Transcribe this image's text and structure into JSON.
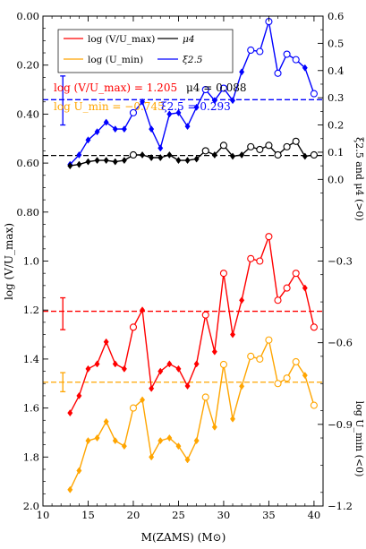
{
  "chart_data": {
    "type": "line",
    "xlabel": "M(ZAMS) (M⊙)",
    "ylabel_left": "log (V/U_max)",
    "ylabel_right_top": "ξ2.5 and μ4 (>0)",
    "ylabel_right_bottom": "log U_min (<0)",
    "xlim": [
      10,
      41
    ],
    "ylim_left_inverted": [
      0.0,
      2.0
    ],
    "ylim_right": [
      -1.2,
      0.6
    ],
    "x_ticks": [
      "10",
      "15",
      "20",
      "25",
      "30",
      "35",
      "40"
    ],
    "y_left_ticks": [
      "0.00",
      "0.20",
      "0.40",
      "0.60",
      "0.80",
      "1.0",
      "1.2",
      "1.4",
      "1.6",
      "1.8",
      "2.0"
    ],
    "y_right_ticks": [
      "0.6",
      "0.5",
      "0.4",
      "0.3",
      "0.2",
      "0.1",
      "0.0",
      "−0.3",
      "−0.6",
      "−0.9",
      "−1.2"
    ],
    "legend": {
      "entries": [
        {
          "label": "log (V/U_max)",
          "color": "#ff0000"
        },
        {
          "label": "μ4",
          "color": "#000000"
        },
        {
          "label": "log (U_min)",
          "color": "#ffa500"
        },
        {
          "label": "ξ2.5",
          "color": "#0000ff"
        }
      ]
    },
    "annotations": {
      "line1_red": "log (V/U_max) = 1.205",
      "line1_black": "μ4 = 0.088",
      "line2_orange": "log U_min = −0.745",
      "line2_blue": "ξ2.5 = 0.293"
    },
    "axis": "left = log(V/U_max) (inverted); right upper = ξ2.5 & μ4; right lower = log U_min",
    "series": [
      {
        "name": "ξ2.5",
        "axis": "right",
        "color": "#0000ff",
        "x": [
          13,
          14,
          15,
          16,
          17,
          18,
          19,
          20,
          21,
          22,
          23,
          24,
          25,
          26,
          27,
          28,
          29,
          30,
          31,
          32,
          33,
          34,
          35,
          36,
          37,
          38,
          39,
          40
        ],
        "y": [
          0.055,
          0.09,
          0.145,
          0.175,
          0.21,
          0.185,
          0.185,
          0.245,
          0.285,
          0.185,
          0.115,
          0.24,
          0.245,
          0.195,
          0.265,
          0.33,
          0.29,
          0.335,
          0.29,
          0.395,
          0.475,
          0.47,
          0.58,
          0.39,
          0.46,
          0.44,
          0.41,
          0.315
        ],
        "markers": [
          "diamond",
          "diamond",
          "diamond",
          "diamond",
          "diamond",
          "diamond",
          "diamond",
          "circle",
          "diamond",
          "diamond",
          "diamond",
          "diamond",
          "diamond",
          "diamond",
          "diamond",
          "circle",
          "diamond",
          "circle",
          "diamond",
          "diamond",
          "circle",
          "circle",
          "circle",
          "circle",
          "circle",
          "circle",
          "diamond",
          "circle"
        ]
      },
      {
        "name": "μ4",
        "axis": "right",
        "color": "#000000",
        "x": [
          13,
          14,
          15,
          16,
          17,
          18,
          19,
          20,
          21,
          22,
          23,
          24,
          25,
          26,
          27,
          28,
          29,
          30,
          31,
          32,
          33,
          34,
          35,
          36,
          37,
          38,
          39,
          40
        ],
        "y": [
          0.05,
          0.055,
          0.065,
          0.07,
          0.07,
          0.065,
          0.07,
          0.09,
          0.09,
          0.08,
          0.08,
          0.09,
          0.07,
          0.07,
          0.075,
          0.105,
          0.09,
          0.125,
          0.085,
          0.09,
          0.12,
          0.11,
          0.125,
          0.09,
          0.12,
          0.14,
          0.085,
          0.09
        ],
        "markers": [
          "diamond",
          "diamond",
          "diamond",
          "diamond",
          "diamond",
          "diamond",
          "diamond",
          "circle",
          "diamond",
          "diamond",
          "diamond",
          "diamond",
          "diamond",
          "diamond",
          "diamond",
          "circle",
          "diamond",
          "circle",
          "diamond",
          "diamond",
          "circle",
          "circle",
          "circle",
          "circle",
          "circle",
          "circle",
          "diamond",
          "circle"
        ]
      },
      {
        "name": "log (V/U_max)",
        "axis": "left",
        "color": "#ff0000",
        "x": [
          13,
          14,
          15,
          16,
          17,
          18,
          19,
          20,
          21,
          22,
          23,
          24,
          25,
          26,
          27,
          28,
          29,
          30,
          31,
          32,
          33,
          34,
          35,
          36,
          37,
          38,
          39,
          40
        ],
        "y": [
          1.62,
          1.55,
          1.44,
          1.42,
          1.33,
          1.42,
          1.44,
          1.27,
          1.2,
          1.52,
          1.45,
          1.42,
          1.44,
          1.51,
          1.42,
          1.22,
          1.37,
          1.05,
          1.3,
          1.16,
          0.99,
          1.0,
          0.9,
          1.16,
          1.11,
          1.05,
          1.11,
          1.27
        ],
        "markers": [
          "diamond",
          "diamond",
          "diamond",
          "diamond",
          "diamond",
          "diamond",
          "diamond",
          "circle",
          "diamond",
          "diamond",
          "diamond",
          "diamond",
          "diamond",
          "diamond",
          "diamond",
          "circle",
          "diamond",
          "circle",
          "diamond",
          "diamond",
          "circle",
          "circle",
          "circle",
          "circle",
          "circle",
          "circle",
          "diamond",
          "circle"
        ]
      },
      {
        "name": "log (U_min)",
        "axis": "right",
        "color": "#ffa500",
        "x": [
          13,
          14,
          15,
          16,
          17,
          18,
          19,
          20,
          21,
          22,
          23,
          24,
          25,
          26,
          27,
          28,
          29,
          30,
          31,
          32,
          33,
          34,
          35,
          36,
          37,
          38,
          39,
          40
        ],
        "y": [
          -1.14,
          -1.07,
          -0.96,
          -0.95,
          -0.89,
          -0.96,
          -0.98,
          -0.84,
          -0.81,
          -1.02,
          -0.96,
          -0.95,
          -0.98,
          -1.03,
          -0.96,
          -0.8,
          -0.91,
          -0.68,
          -0.88,
          -0.76,
          -0.65,
          -0.66,
          -0.59,
          -0.75,
          -0.73,
          -0.67,
          -0.72,
          -0.83
        ],
        "markers": [
          "diamond",
          "diamond",
          "diamond",
          "diamond",
          "diamond",
          "diamond",
          "diamond",
          "circle",
          "diamond",
          "diamond",
          "diamond",
          "diamond",
          "diamond",
          "diamond",
          "diamond",
          "circle",
          "diamond",
          "circle",
          "diamond",
          "diamond",
          "circle",
          "circle",
          "circle",
          "circle",
          "circle",
          "circle",
          "diamond",
          "circle"
        ]
      }
    ],
    "reference_lines": [
      {
        "name": "ξ2.5 mean",
        "axis": "right",
        "value": 0.293,
        "color": "#0000ff"
      },
      {
        "name": "μ4 mean",
        "axis": "right",
        "value": 0.088,
        "color": "#000000"
      },
      {
        "name": "log (V/U_max) mean",
        "axis": "left",
        "value": 1.205,
        "color": "#ff0000"
      },
      {
        "name": "log U_min mean",
        "axis": "right",
        "value": -0.745,
        "color": "#ffa500"
      }
    ],
    "error_bars": [
      {
        "axis": "right",
        "x": 12.2,
        "center": 0.293,
        "low": 0.2,
        "high": 0.38,
        "color": "#0000ff"
      },
      {
        "axis": "left",
        "x": 12.2,
        "center": 1.205,
        "low": 1.15,
        "high": 1.28,
        "color": "#ff0000"
      },
      {
        "axis": "right",
        "x": 12.2,
        "center": -0.745,
        "low": -0.78,
        "high": -0.71,
        "color": "#ffa500"
      }
    ]
  }
}
